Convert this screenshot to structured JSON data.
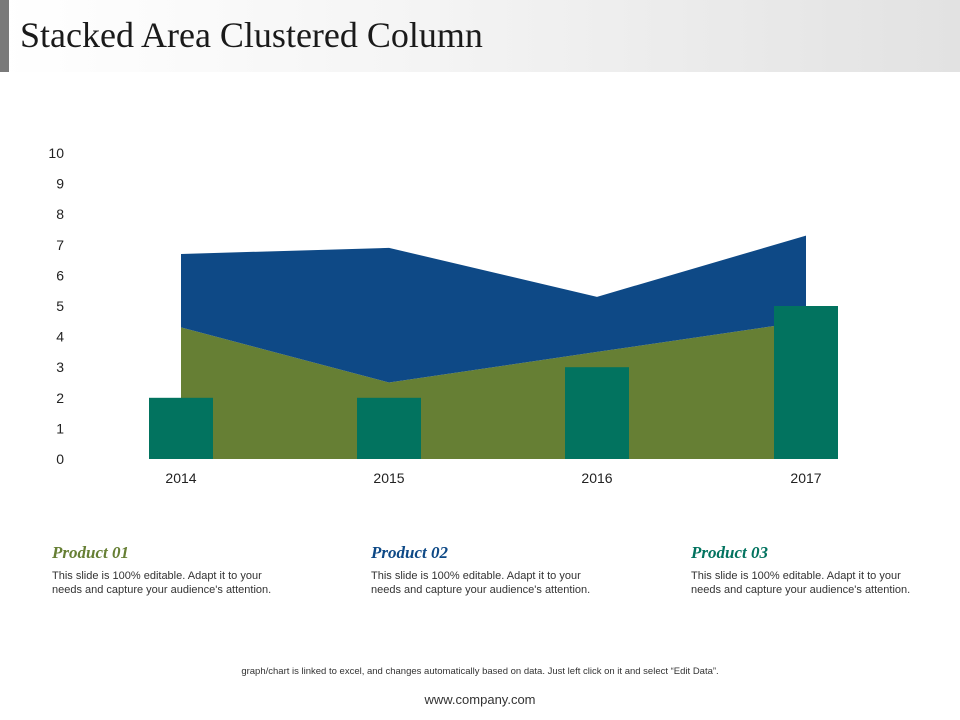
{
  "header": {
    "title": "Stacked Area Clustered Column"
  },
  "colors": {
    "area_bottom": "#667f34",
    "area_top": "#0e4986",
    "column": "#02735f",
    "product1": "#667f34",
    "product2": "#0e4986",
    "product3": "#02735f"
  },
  "chart_data": {
    "type": "bar",
    "combo": "stacked-area + clustered-column",
    "categories": [
      "2014",
      "2015",
      "2016",
      "2017"
    ],
    "ylim": [
      0,
      10
    ],
    "yticks": [
      0,
      1,
      2,
      3,
      4,
      5,
      6,
      7,
      8,
      9,
      10
    ],
    "grid": false,
    "legend": "none",
    "series": [
      {
        "type": "area",
        "values": [
          4.3,
          2.5,
          3.5,
          4.5
        ]
      },
      {
        "type": "area",
        "values": [
          2.4,
          4.4,
          1.8,
          2.8
        ]
      },
      {
        "type": "column",
        "values": [
          2,
          2,
          3,
          5
        ]
      }
    ]
  },
  "products": [
    {
      "title": "Product 01",
      "desc": "This slide is 100% editable. Adapt it to your needs and capture your audience's attention."
    },
    {
      "title": "Product 02",
      "desc": "This slide is 100% editable. Adapt it to your needs and capture your audience's attention."
    },
    {
      "title": "Product 03",
      "desc": "This slide is 100% editable. Adapt it to your needs and capture your audience's attention."
    }
  ],
  "footer": {
    "note": "graph/chart is linked to excel, and changes automatically based on data. Just left click on it and select “Edit Data”.",
    "website": "www.company.com"
  }
}
